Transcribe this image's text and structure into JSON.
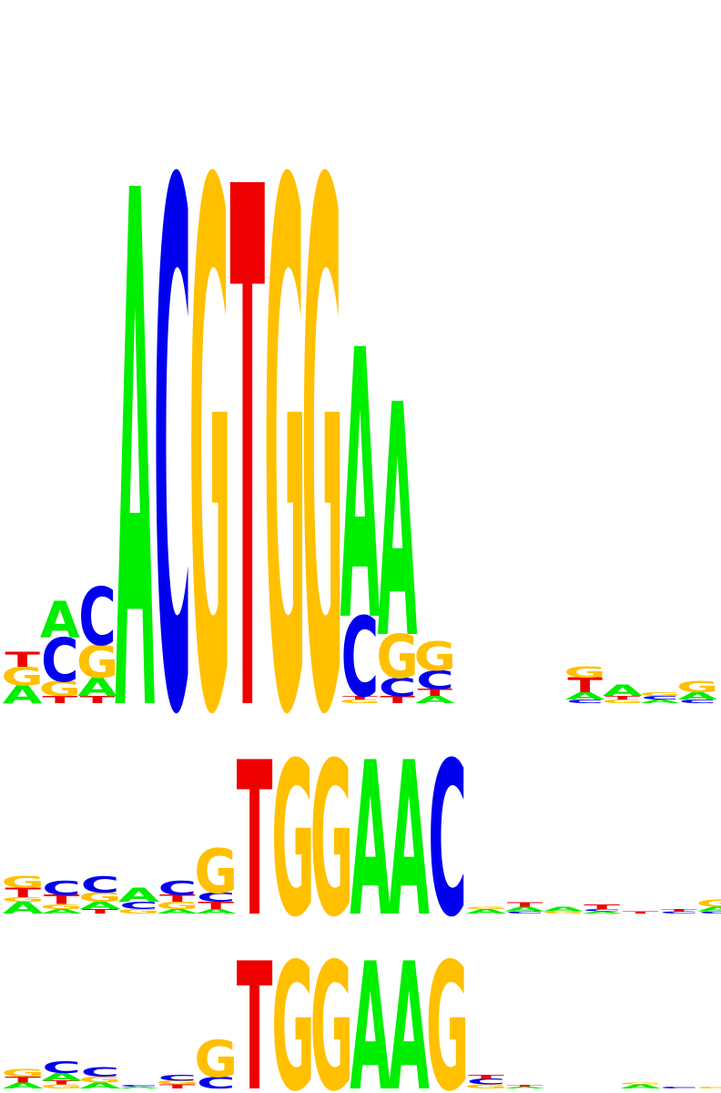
{
  "colors": {
    "A": "#00ee00",
    "C": "#0000ee",
    "G": "#ffc000",
    "T": "#ee0000"
  },
  "logos": [
    {
      "name": "motif-logo-1",
      "columns": [
        [
          [
            "A",
            0.05
          ],
          [
            "G",
            0.05
          ],
          [
            "T",
            0.04
          ]
        ],
        [
          [
            "T",
            0.02
          ],
          [
            "G",
            0.04
          ],
          [
            "C",
            0.12
          ],
          [
            "A",
            0.1
          ]
        ],
        [
          [
            "T",
            0.02
          ],
          [
            "A",
            0.05
          ],
          [
            "G",
            0.09
          ],
          [
            "C",
            0.16
          ]
        ],
        [
          [
            "A",
            1.42
          ]
        ],
        [
          [
            "C",
            1.44
          ]
        ],
        [
          [
            "G",
            1.44
          ]
        ],
        [
          [
            "T",
            1.43
          ]
        ],
        [
          [
            "G",
            1.44
          ]
        ],
        [
          [
            "G",
            1.44
          ]
        ],
        [
          [
            "G",
            0.01
          ],
          [
            "T",
            0.01
          ],
          [
            "C",
            0.22
          ],
          [
            "A",
            0.74
          ]
        ],
        [
          [
            "T",
            0.02
          ],
          [
            "C",
            0.05
          ],
          [
            "G",
            0.12
          ],
          [
            "A",
            0.64
          ]
        ],
        [
          [
            "A",
            0.02
          ],
          [
            "T",
            0.02
          ],
          [
            "C",
            0.05
          ],
          [
            "G",
            0.08
          ]
        ],
        [],
        [],
        [],
        [
          [
            "C",
            0.01
          ],
          [
            "A",
            0.02
          ],
          [
            "T",
            0.04
          ],
          [
            "G",
            0.03
          ]
        ],
        [
          [
            "G",
            0.01
          ],
          [
            "T",
            0.01
          ],
          [
            "A",
            0.03
          ]
        ],
        [
          [
            "A",
            0.01
          ],
          [
            "C",
            0.01
          ],
          [
            "G",
            0.01
          ]
        ],
        [
          [
            "C",
            0.01
          ],
          [
            "A",
            0.02
          ],
          [
            "G",
            0.03
          ]
        ]
      ]
    },
    {
      "name": "motif-logo-2",
      "columns": [
        [
          [
            "A",
            0.05
          ],
          [
            "G",
            0.02
          ],
          [
            "T",
            0.04
          ],
          [
            "G",
            0.05
          ]
        ],
        [
          [
            "A",
            0.02
          ],
          [
            "G",
            0.02
          ],
          [
            "T",
            0.04
          ],
          [
            "C",
            0.06
          ]
        ],
        [
          [
            "T",
            0.02
          ],
          [
            "A",
            0.03
          ],
          [
            "G",
            0.04
          ],
          [
            "C",
            0.07
          ]
        ],
        [
          [
            "G",
            0.02
          ],
          [
            "C",
            0.03
          ],
          [
            "A",
            0.06
          ]
        ],
        [
          [
            "A",
            0.02
          ],
          [
            "G",
            0.03
          ],
          [
            "T",
            0.03
          ],
          [
            "C",
            0.06
          ]
        ],
        [
          [
            "A",
            0.02
          ],
          [
            "T",
            0.03
          ],
          [
            "C",
            0.04
          ],
          [
            "G",
            0.19
          ]
        ],
        [
          [
            "T",
            0.66
          ]
        ],
        [
          [
            "G",
            0.66
          ]
        ],
        [
          [
            "G",
            0.66
          ]
        ],
        [
          [
            "A",
            0.66
          ]
        ],
        [
          [
            "A",
            0.66
          ]
        ],
        [
          [
            "C",
            0.66
          ]
        ],
        [
          [
            "A",
            0.02
          ],
          [
            "G",
            0.01
          ]
        ],
        [
          [
            "C",
            0.01
          ],
          [
            "A",
            0.02
          ],
          [
            "T",
            0.02
          ]
        ],
        [
          [
            "G",
            0.01
          ],
          [
            "A",
            0.02
          ]
        ],
        [
          [
            "A",
            0.01
          ],
          [
            "C",
            0.01
          ],
          [
            "T",
            0.02
          ]
        ],
        [
          [
            "T",
            0.01
          ]
        ],
        [
          [
            "C",
            0.01
          ],
          [
            "T",
            0.01
          ]
        ],
        [
          [
            "C",
            0.01
          ],
          [
            "A",
            0.02
          ],
          [
            "G",
            0.03
          ]
        ]
      ]
    },
    {
      "name": "motif-logo-3",
      "columns": [
        [
          [
            "A",
            0.03
          ],
          [
            "T",
            0.03
          ],
          [
            "G",
            0.04
          ]
        ],
        [
          [
            "G",
            0.02
          ],
          [
            "T",
            0.02
          ],
          [
            "A",
            0.04
          ],
          [
            "C",
            0.06
          ]
        ],
        [
          [
            "A",
            0.03
          ],
          [
            "G",
            0.03
          ],
          [
            "C",
            0.05
          ]
        ],
        [
          [
            "A",
            0.01
          ],
          [
            "C",
            0.01
          ]
        ],
        [
          [
            "T",
            0.02
          ],
          [
            "G",
            0.02
          ],
          [
            "C",
            0.03
          ]
        ],
        [
          [
            "C",
            0.06
          ],
          [
            "G",
            0.19
          ]
        ],
        [
          [
            "T",
            0.66
          ]
        ],
        [
          [
            "G",
            0.66
          ]
        ],
        [
          [
            "G",
            0.66
          ]
        ],
        [
          [
            "A",
            0.66
          ]
        ],
        [
          [
            "A",
            0.66
          ]
        ],
        [
          [
            "G",
            0.66
          ]
        ],
        [
          [
            "G",
            0.02
          ],
          [
            "C",
            0.03
          ],
          [
            "T",
            0.02
          ]
        ],
        [
          [
            "A",
            0.01
          ],
          [
            "T",
            0.01
          ]
        ],
        [],
        [],
        [
          [
            "A",
            0.02
          ],
          [
            "G",
            0.01
          ]
        ],
        [
          [
            "C",
            0.01
          ]
        ],
        [
          [
            "G",
            0.01
          ]
        ]
      ]
    }
  ]
}
